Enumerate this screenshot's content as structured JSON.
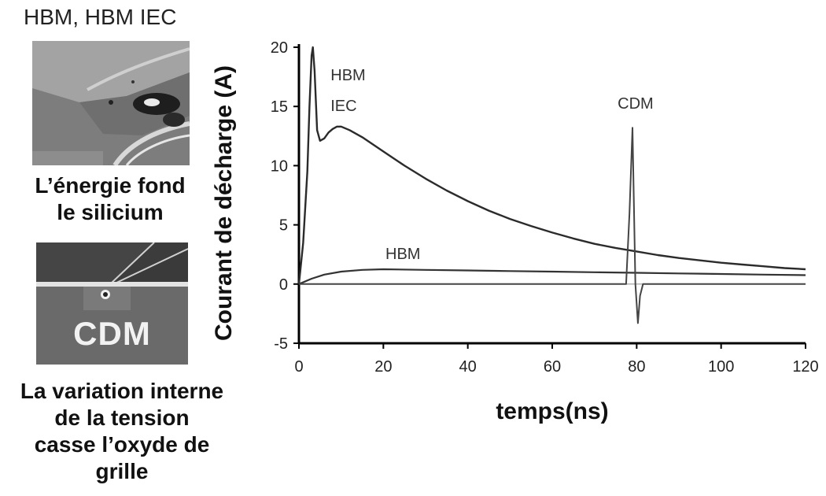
{
  "left_panel": {
    "hbm_caption": "HBM, HBM IEC",
    "hbm_desc_line1": "L’énergie fond",
    "hbm_desc_line2": "le silicium",
    "cdm_photo_text": "CDM",
    "cdm_desc_line1": "La variation interne",
    "cdm_desc_line2": "de la tension",
    "cdm_desc_line3": "casse l’oxyde de",
    "cdm_desc_line4": "grille"
  },
  "chart_data": {
    "type": "line",
    "xlabel": "temps(ns)",
    "ylabel": "Courant de décharge (A)",
    "xlim": [
      0,
      120
    ],
    "ylim": [
      -5,
      20
    ],
    "xticks": [
      0,
      20,
      40,
      60,
      80,
      100,
      120
    ],
    "yticks": [
      -5,
      0,
      5,
      10,
      15,
      20
    ],
    "grid": false,
    "annotations": [
      {
        "text": "HBM",
        "x": 7.5,
        "y": 17.2,
        "series": "HBM IEC"
      },
      {
        "text": "IEC",
        "x": 7.5,
        "y": 14.6,
        "series": "HBM IEC"
      },
      {
        "text": "CDM",
        "x": 75.5,
        "y": 14.8,
        "series": "CDM"
      },
      {
        "text": "HBM",
        "x": 20.5,
        "y": 2.1,
        "series": "HBM"
      }
    ],
    "series": [
      {
        "name": "HBM IEC",
        "x": [
          0,
          1,
          2,
          2.5,
          3,
          3.3,
          3.7,
          4.3,
          5,
          6,
          7,
          8,
          9,
          10,
          12,
          15,
          20,
          25,
          30,
          35,
          40,
          45,
          50,
          55,
          60,
          65,
          70,
          75,
          80,
          85,
          90,
          95,
          100,
          105,
          110,
          115,
          120
        ],
        "y": [
          0,
          3.5,
          9.5,
          15,
          19.3,
          20,
          18,
          13,
          12.1,
          12.3,
          12.8,
          13.1,
          13.3,
          13.3,
          13.0,
          12.4,
          11.2,
          10.0,
          8.9,
          7.9,
          7.0,
          6.2,
          5.5,
          4.9,
          4.35,
          3.85,
          3.4,
          3.05,
          2.75,
          2.45,
          2.2,
          2.0,
          1.8,
          1.65,
          1.5,
          1.35,
          1.25
        ]
      },
      {
        "name": "HBM",
        "x": [
          0,
          3,
          6,
          10,
          15,
          20,
          30,
          40,
          50,
          60,
          70,
          80,
          90,
          100,
          110,
          120
        ],
        "y": [
          0,
          0.45,
          0.8,
          1.05,
          1.2,
          1.25,
          1.2,
          1.15,
          1.1,
          1.05,
          1.0,
          0.95,
          0.9,
          0.85,
          0.8,
          0.75
        ]
      },
      {
        "name": "CDM",
        "x": [
          0,
          77.5,
          78.3,
          79.0,
          79.7,
          80.3,
          80.8,
          81.5,
          83,
          120
        ],
        "y": [
          0,
          0,
          6,
          13.2,
          0,
          -3.3,
          -1,
          0,
          0,
          0
        ]
      }
    ]
  }
}
